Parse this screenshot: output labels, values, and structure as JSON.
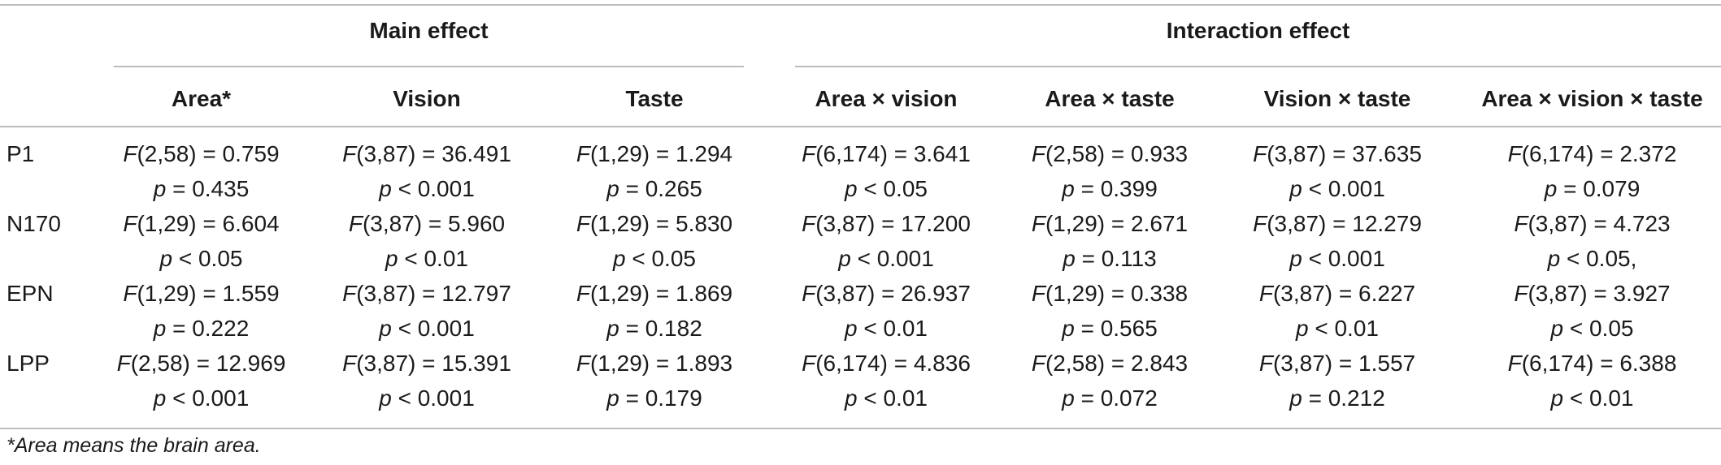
{
  "table": {
    "group_headers": {
      "main": "Main effect",
      "interaction": "Interaction effect"
    },
    "columns": [
      "Area*",
      "Vision",
      "Taste",
      "Area × vision",
      "Area × taste",
      "Vision × taste",
      "Area × vision × taste"
    ],
    "rows": [
      {
        "label": "P1",
        "cells": [
          {
            "f": "F",
            "f_rest": "(2,58) = 0.759",
            "p": "p",
            "p_rest": " = 0.435"
          },
          {
            "f": "F",
            "f_rest": "(3,87) = 36.491",
            "p": "p",
            "p_rest": " < 0.001"
          },
          {
            "f": "F",
            "f_rest": "(1,29) = 1.294",
            "p": "p",
            "p_rest": " = 0.265"
          },
          {
            "f": "F",
            "f_rest": "(6,174) = 3.641",
            "p": "p",
            "p_rest": " < 0.05"
          },
          {
            "f": "F",
            "f_rest": "(2,58) = 0.933",
            "p": "p",
            "p_rest": " = 0.399"
          },
          {
            "f": "F",
            "f_rest": "(3,87) = 37.635",
            "p": "p",
            "p_rest": " < 0.001"
          },
          {
            "f": "F",
            "f_rest": "(6,174) = 2.372",
            "p": "p",
            "p_rest": " = 0.079"
          }
        ]
      },
      {
        "label": "N170",
        "cells": [
          {
            "f": "F",
            "f_rest": "(1,29) = 6.604",
            "p": "p",
            "p_rest": " < 0.05"
          },
          {
            "f": "F",
            "f_rest": "(3,87) = 5.960",
            "p": "p",
            "p_rest": " < 0.01"
          },
          {
            "f": "F",
            "f_rest": "(1,29) = 5.830",
            "p": "p",
            "p_rest": " < 0.05"
          },
          {
            "f": "F",
            "f_rest": "(3,87) = 17.200",
            "p": "p",
            "p_rest": " < 0.001"
          },
          {
            "f": "F",
            "f_rest": "(1,29) = 2.671",
            "p": "p",
            "p_rest": " = 0.113"
          },
          {
            "f": "F",
            "f_rest": "(3,87) = 12.279",
            "p": "p",
            "p_rest": " < 0.001"
          },
          {
            "f": "F",
            "f_rest": "(3,87) = 4.723",
            "p": "p",
            "p_rest": " < 0.05,"
          }
        ]
      },
      {
        "label": "EPN",
        "cells": [
          {
            "f": "F",
            "f_rest": "(1,29) = 1.559",
            "p": "p",
            "p_rest": " = 0.222"
          },
          {
            "f": "F",
            "f_rest": "(3,87) = 12.797",
            "p": "p",
            "p_rest": " < 0.001"
          },
          {
            "f": "F",
            "f_rest": "(1,29) = 1.869",
            "p": "p",
            "p_rest": " = 0.182"
          },
          {
            "f": "F",
            "f_rest": "(3,87) = 26.937",
            "p": "p",
            "p_rest": " < 0.01"
          },
          {
            "f": "F",
            "f_rest": "(1,29) = 0.338",
            "p": "p",
            "p_rest": " = 0.565"
          },
          {
            "f": "F",
            "f_rest": "(3,87) = 6.227",
            "p": "p",
            "p_rest": " < 0.01"
          },
          {
            "f": "F",
            "f_rest": "(3,87) = 3.927",
            "p": "p",
            "p_rest": " < 0.05"
          }
        ]
      },
      {
        "label": "LPP",
        "cells": [
          {
            "f": "F",
            "f_rest": "(2,58) = 12.969",
            "p": "p",
            "p_rest": " < 0.001"
          },
          {
            "f": "F",
            "f_rest": "(3,87) = 15.391",
            "p": "p",
            "p_rest": " < 0.001"
          },
          {
            "f": "F",
            "f_rest": "(1,29) = 1.893",
            "p": "p",
            "p_rest": " = 0.179"
          },
          {
            "f": "F",
            "f_rest": "(6,174) = 4.836",
            "p": "p",
            "p_rest": " < 0.01"
          },
          {
            "f": "F",
            "f_rest": "(2,58) = 2.843",
            "p": "p",
            "p_rest": " = 0.072"
          },
          {
            "f": "F",
            "f_rest": "(3,87) = 1.557",
            "p": "p",
            "p_rest": " = 0.212"
          },
          {
            "f": "F",
            "f_rest": "(6,174) = 6.388",
            "p": "p",
            "p_rest": " < 0.01"
          }
        ]
      }
    ]
  },
  "footnote": "*Area means the brain area."
}
